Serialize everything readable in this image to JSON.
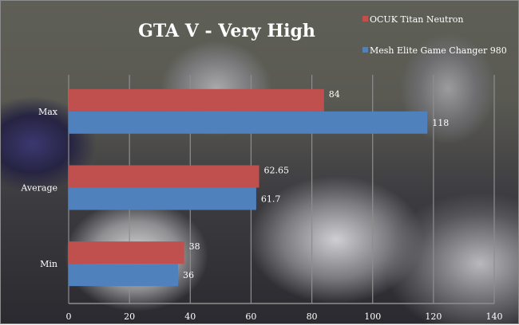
{
  "chart_data": {
    "type": "bar",
    "orientation": "horizontal",
    "title": "GTA V - Very High",
    "categories": [
      "Max",
      "Average",
      "Min"
    ],
    "series": [
      {
        "name": "OCUK Titan Neutron",
        "color": "#c0504d",
        "values": [
          84,
          62.65,
          38
        ]
      },
      {
        "name": "Mesh Elite Game Changer 980",
        "color": "#4f81bd",
        "values": [
          118,
          61.7,
          36
        ]
      }
    ],
    "xlim": [
      0,
      140
    ],
    "xticks": [
      0,
      20,
      40,
      60,
      80,
      100,
      120,
      140
    ],
    "grid": true,
    "legend": "top-right",
    "xlabel": "",
    "ylabel": ""
  }
}
